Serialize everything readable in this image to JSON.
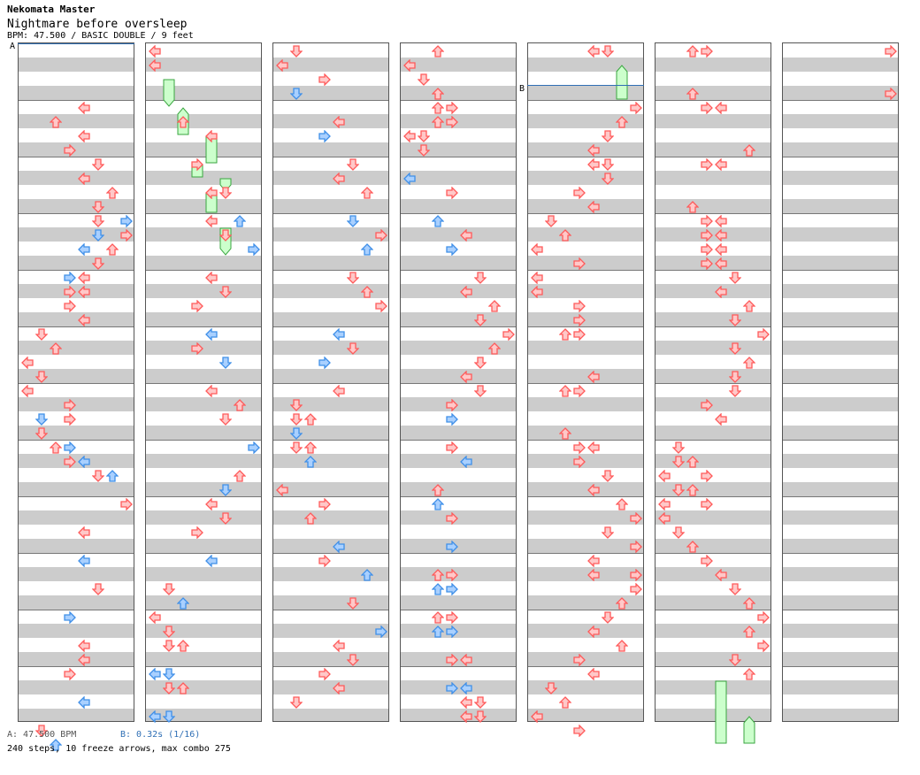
{
  "song": {
    "group": "Nekomata Master",
    "title": "Nightmare before oversleep",
    "info": "BPM: 47.500 / BASIC DOUBLE / 9 feet"
  },
  "footer": {
    "bpm": "A: 47.500 BPM",
    "stop": "B: 0.32s (1/16)",
    "stats": "240 steps, 10 freeze arrows, max combo 275"
  },
  "markers": {
    "a": "A",
    "b": "B"
  },
  "colors": {
    "red": "#ff5a5a",
    "red_fill": "#ffc8c8",
    "blue": "#3f8fe8",
    "blue_fill": "#a9d0ff",
    "green": "#3aa640",
    "green_fill": "#ccffcc"
  },
  "icons": [
    "left-arrow-icon",
    "down-arrow-icon",
    "up-arrow-icon",
    "right-arrow-icon",
    "freeze-arrow-icon"
  ],
  "chart": [
    {
      "notes": [
        [
          2.0,
          4,
          "r"
        ],
        [
          2.5,
          2,
          "r"
        ],
        [
          3.0,
          4,
          "r"
        ],
        [
          3.5,
          3,
          "r"
        ],
        [
          4.0,
          5,
          "r"
        ],
        [
          4.5,
          4,
          "r"
        ],
        [
          5.0,
          6,
          "r"
        ],
        [
          5.5,
          5,
          "r"
        ],
        [
          6.0,
          5,
          "r"
        ],
        [
          6.0,
          7,
          "b"
        ],
        [
          6.5,
          7,
          "r"
        ],
        [
          6.5,
          5,
          "b"
        ],
        [
          7.0,
          4,
          "b"
        ],
        [
          7.0,
          6,
          "r"
        ],
        [
          7.5,
          5,
          "r"
        ],
        [
          8.0,
          3,
          "b"
        ],
        [
          8.0,
          4,
          "r"
        ],
        [
          8.5,
          4,
          "r"
        ],
        [
          8.5,
          3,
          "r"
        ],
        [
          9.0,
          3,
          "r"
        ],
        [
          9.5,
          4,
          "r"
        ],
        [
          10.0,
          1,
          "r"
        ],
        [
          10.5,
          2,
          "r"
        ],
        [
          11.0,
          0,
          "r"
        ],
        [
          11.5,
          1,
          "r"
        ],
        [
          12.0,
          0,
          "r"
        ],
        [
          12.5,
          3,
          "r"
        ],
        [
          13.0,
          1,
          "b"
        ],
        [
          13.0,
          3,
          "r"
        ],
        [
          13.5,
          1,
          "r"
        ],
        [
          14.0,
          2,
          "r"
        ],
        [
          14.0,
          3,
          "b"
        ],
        [
          14.5,
          3,
          "r"
        ],
        [
          14.5,
          4,
          "b"
        ],
        [
          15.0,
          6,
          "b"
        ],
        [
          15.0,
          5,
          "r"
        ],
        [
          16.0,
          7,
          "r"
        ],
        [
          17.0,
          4,
          "r"
        ],
        [
          18.0,
          4,
          "b"
        ],
        [
          19.0,
          5,
          "r"
        ],
        [
          20.0,
          3,
          "b"
        ],
        [
          21.0,
          4,
          "r"
        ],
        [
          21.5,
          4,
          "r"
        ],
        [
          22.0,
          3,
          "r"
        ],
        [
          23.0,
          4,
          "b"
        ],
        [
          24.0,
          1,
          "r"
        ],
        [
          24.5,
          2,
          "b"
        ]
      ],
      "freezes": []
    },
    {
      "notes": [
        [
          0.0,
          0,
          "r"
        ],
        [
          0.5,
          0,
          "r"
        ],
        [
          2.5,
          2,
          "r"
        ],
        [
          3.0,
          4,
          "r"
        ],
        [
          4.0,
          3,
          "r"
        ],
        [
          5.0,
          4,
          "r"
        ],
        [
          5.0,
          5,
          "r"
        ],
        [
          6.0,
          6,
          "b"
        ],
        [
          6.0,
          4,
          "r"
        ],
        [
          6.5,
          5,
          "r"
        ],
        [
          7.0,
          7,
          "b"
        ],
        [
          8.0,
          4,
          "r"
        ],
        [
          8.5,
          5,
          "r"
        ],
        [
          9.0,
          3,
          "r"
        ],
        [
          10.0,
          4,
          "b"
        ],
        [
          10.5,
          3,
          "r"
        ],
        [
          11.0,
          5,
          "b"
        ],
        [
          12.0,
          4,
          "r"
        ],
        [
          12.5,
          6,
          "r"
        ],
        [
          13.0,
          5,
          "r"
        ],
        [
          14.0,
          7,
          "b"
        ],
        [
          15.0,
          6,
          "r"
        ],
        [
          15.5,
          5,
          "b"
        ],
        [
          16.0,
          4,
          "r"
        ],
        [
          16.5,
          5,
          "r"
        ],
        [
          17.0,
          3,
          "r"
        ],
        [
          18.0,
          4,
          "b"
        ],
        [
          19.0,
          1,
          "r"
        ],
        [
          19.5,
          2,
          "b"
        ],
        [
          20.0,
          0,
          "r"
        ],
        [
          20.5,
          1,
          "r"
        ],
        [
          21.0,
          1,
          "r"
        ],
        [
          21.0,
          2,
          "r"
        ],
        [
          22.0,
          0,
          "b"
        ],
        [
          22.0,
          1,
          "b"
        ],
        [
          22.5,
          1,
          "r"
        ],
        [
          22.5,
          2,
          "r"
        ],
        [
          23.5,
          0,
          "b"
        ],
        [
          23.5,
          1,
          "b"
        ]
      ],
      "freezes": [
        [
          1.25,
          1,
          2.25
        ],
        [
          2.25,
          2,
          3.25
        ],
        [
          3.25,
          4,
          4.25
        ],
        [
          4.25,
          3,
          4.75
        ],
        [
          4.75,
          5,
          5.25
        ],
        [
          5.25,
          4,
          6.0
        ],
        [
          6.5,
          5,
          7.5
        ]
      ]
    },
    {
      "notes": [
        [
          0.0,
          1,
          "r"
        ],
        [
          0.5,
          0,
          "r"
        ],
        [
          1.0,
          3,
          "r"
        ],
        [
          1.5,
          1,
          "b"
        ],
        [
          2.5,
          4,
          "r"
        ],
        [
          3.0,
          3,
          "b"
        ],
        [
          4.0,
          5,
          "r"
        ],
        [
          4.5,
          4,
          "r"
        ],
        [
          5.0,
          6,
          "r"
        ],
        [
          6.0,
          5,
          "b"
        ],
        [
          6.5,
          7,
          "r"
        ],
        [
          7.0,
          6,
          "b"
        ],
        [
          8.0,
          5,
          "r"
        ],
        [
          8.5,
          6,
          "r"
        ],
        [
          9.0,
          7,
          "r"
        ],
        [
          10.0,
          4,
          "b"
        ],
        [
          10.5,
          5,
          "r"
        ],
        [
          11.0,
          3,
          "b"
        ],
        [
          12.0,
          4,
          "r"
        ],
        [
          12.5,
          1,
          "r"
        ],
        [
          13.0,
          1,
          "r"
        ],
        [
          13.0,
          2,
          "r"
        ],
        [
          13.5,
          1,
          "b"
        ],
        [
          14.0,
          1,
          "r"
        ],
        [
          14.0,
          2,
          "r"
        ],
        [
          14.5,
          2,
          "b"
        ],
        [
          15.5,
          0,
          "r"
        ],
        [
          16.0,
          3,
          "r"
        ],
        [
          16.5,
          2,
          "r"
        ],
        [
          17.5,
          4,
          "b"
        ],
        [
          18.0,
          3,
          "r"
        ],
        [
          18.5,
          6,
          "b"
        ],
        [
          19.5,
          5,
          "r"
        ],
        [
          20.5,
          7,
          "b"
        ],
        [
          21.0,
          4,
          "r"
        ],
        [
          21.5,
          5,
          "r"
        ],
        [
          22.0,
          3,
          "r"
        ],
        [
          22.5,
          4,
          "r"
        ],
        [
          23.0,
          1,
          "r"
        ]
      ],
      "freezes": []
    },
    {
      "notes": [
        [
          0.0,
          2,
          "r"
        ],
        [
          0.5,
          0,
          "r"
        ],
        [
          1.0,
          1,
          "r"
        ],
        [
          1.5,
          2,
          "r"
        ],
        [
          2.0,
          2,
          "r"
        ],
        [
          2.0,
          3,
          "r"
        ],
        [
          2.5,
          2,
          "r"
        ],
        [
          2.5,
          3,
          "r"
        ],
        [
          3.0,
          0,
          "r"
        ],
        [
          3.0,
          1,
          "r"
        ],
        [
          3.5,
          1,
          "r"
        ],
        [
          4.5,
          0,
          "b"
        ],
        [
          5.0,
          3,
          "r"
        ],
        [
          6.0,
          2,
          "b"
        ],
        [
          6.5,
          4,
          "r"
        ],
        [
          7.0,
          3,
          "b"
        ],
        [
          8.0,
          5,
          "r"
        ],
        [
          8.5,
          4,
          "r"
        ],
        [
          9.0,
          6,
          "r"
        ],
        [
          9.5,
          5,
          "r"
        ],
        [
          10.0,
          7,
          "r"
        ],
        [
          10.5,
          6,
          "r"
        ],
        [
          11.0,
          5,
          "r"
        ],
        [
          11.5,
          4,
          "r"
        ],
        [
          12.0,
          5,
          "r"
        ],
        [
          12.5,
          3,
          "r"
        ],
        [
          13.0,
          3,
          "b"
        ],
        [
          14.0,
          3,
          "r"
        ],
        [
          14.5,
          4,
          "b"
        ],
        [
          15.5,
          2,
          "r"
        ],
        [
          16.0,
          2,
          "b"
        ],
        [
          16.5,
          3,
          "r"
        ],
        [
          17.5,
          3,
          "b"
        ],
        [
          18.5,
          2,
          "r"
        ],
        [
          18.5,
          3,
          "r"
        ],
        [
          19.0,
          2,
          "b"
        ],
        [
          19.0,
          3,
          "b"
        ],
        [
          20.0,
          2,
          "r"
        ],
        [
          20.0,
          3,
          "r"
        ],
        [
          20.5,
          2,
          "b"
        ],
        [
          20.5,
          3,
          "b"
        ],
        [
          21.5,
          3,
          "r"
        ],
        [
          21.5,
          4,
          "r"
        ],
        [
          22.5,
          3,
          "b"
        ],
        [
          22.5,
          4,
          "b"
        ],
        [
          23.0,
          4,
          "r"
        ],
        [
          23.0,
          5,
          "r"
        ],
        [
          23.5,
          4,
          "r"
        ],
        [
          23.5,
          5,
          "r"
        ]
      ],
      "freezes": []
    },
    {
      "notes": [
        [
          0.0,
          4,
          "r"
        ],
        [
          0.0,
          5,
          "r"
        ],
        [
          2.0,
          7,
          "r"
        ],
        [
          2.5,
          6,
          "r"
        ],
        [
          3.0,
          5,
          "r"
        ],
        [
          3.5,
          4,
          "r"
        ],
        [
          4.0,
          4,
          "r"
        ],
        [
          4.0,
          5,
          "r"
        ],
        [
          4.5,
          5,
          "r"
        ],
        [
          5.0,
          3,
          "r"
        ],
        [
          5.5,
          4,
          "r"
        ],
        [
          6.0,
          1,
          "r"
        ],
        [
          6.5,
          2,
          "r"
        ],
        [
          7.0,
          0,
          "r"
        ],
        [
          7.5,
          3,
          "r"
        ],
        [
          8.0,
          0,
          "r"
        ],
        [
          8.5,
          0,
          "r"
        ],
        [
          9.0,
          3,
          "r"
        ],
        [
          9.5,
          3,
          "r"
        ],
        [
          10.0,
          2,
          "r"
        ],
        [
          10.0,
          3,
          "r"
        ],
        [
          11.5,
          4,
          "r"
        ],
        [
          12.0,
          2,
          "r"
        ],
        [
          12.0,
          3,
          "r"
        ],
        [
          13.5,
          2,
          "r"
        ],
        [
          14.0,
          3,
          "r"
        ],
        [
          14.0,
          4,
          "r"
        ],
        [
          14.5,
          3,
          "r"
        ],
        [
          15.0,
          5,
          "r"
        ],
        [
          15.5,
          4,
          "r"
        ],
        [
          16.0,
          6,
          "r"
        ],
        [
          16.5,
          7,
          "r"
        ],
        [
          17.0,
          5,
          "r"
        ],
        [
          17.5,
          7,
          "r"
        ],
        [
          18.0,
          4,
          "r"
        ],
        [
          18.5,
          4,
          "r"
        ],
        [
          18.5,
          7,
          "r"
        ],
        [
          19.0,
          7,
          "r"
        ],
        [
          19.5,
          6,
          "r"
        ],
        [
          20.0,
          5,
          "r"
        ],
        [
          20.5,
          4,
          "r"
        ],
        [
          21.0,
          6,
          "r"
        ],
        [
          21.5,
          3,
          "r"
        ],
        [
          22.0,
          4,
          "r"
        ],
        [
          22.5,
          1,
          "r"
        ],
        [
          23.0,
          2,
          "r"
        ],
        [
          23.5,
          0,
          "r"
        ],
        [
          24.0,
          3,
          "r"
        ]
      ],
      "freezes": [
        [
          0.75,
          6,
          2.0
        ]
      ]
    },
    {
      "notes": [
        [
          0.0,
          2,
          "r"
        ],
        [
          0.0,
          3,
          "r"
        ],
        [
          1.5,
          2,
          "r"
        ],
        [
          2.0,
          3,
          "r"
        ],
        [
          2.0,
          4,
          "r"
        ],
        [
          3.5,
          6,
          "r"
        ],
        [
          4.0,
          3,
          "r"
        ],
        [
          4.0,
          4,
          "r"
        ],
        [
          5.5,
          2,
          "r"
        ],
        [
          6.0,
          3,
          "r"
        ],
        [
          6.0,
          4,
          "r"
        ],
        [
          6.5,
          3,
          "r"
        ],
        [
          6.5,
          4,
          "r"
        ],
        [
          7.0,
          3,
          "r"
        ],
        [
          7.0,
          4,
          "r"
        ],
        [
          7.5,
          3,
          "r"
        ],
        [
          7.5,
          4,
          "r"
        ],
        [
          8.0,
          5,
          "r"
        ],
        [
          8.5,
          4,
          "r"
        ],
        [
          9.0,
          6,
          "r"
        ],
        [
          9.5,
          5,
          "r"
        ],
        [
          10.0,
          7,
          "r"
        ],
        [
          10.5,
          5,
          "r"
        ],
        [
          11.0,
          6,
          "r"
        ],
        [
          11.5,
          5,
          "r"
        ],
        [
          12.0,
          5,
          "r"
        ],
        [
          12.5,
          3,
          "r"
        ],
        [
          13.0,
          4,
          "r"
        ],
        [
          14.0,
          1,
          "r"
        ],
        [
          14.5,
          1,
          "r"
        ],
        [
          14.5,
          2,
          "r"
        ],
        [
          15.0,
          0,
          "r"
        ],
        [
          15.0,
          3,
          "r"
        ],
        [
          15.5,
          1,
          "r"
        ],
        [
          15.5,
          2,
          "r"
        ],
        [
          16.0,
          0,
          "r"
        ],
        [
          16.0,
          3,
          "r"
        ],
        [
          16.5,
          0,
          "r"
        ],
        [
          17.0,
          1,
          "r"
        ],
        [
          17.5,
          2,
          "r"
        ],
        [
          18.0,
          3,
          "r"
        ],
        [
          18.5,
          4,
          "r"
        ],
        [
          19.0,
          5,
          "r"
        ],
        [
          19.5,
          6,
          "r"
        ],
        [
          20.0,
          7,
          "r"
        ],
        [
          20.5,
          6,
          "r"
        ],
        [
          21.0,
          7,
          "r"
        ],
        [
          21.5,
          5,
          "r"
        ],
        [
          22.0,
          6,
          "r"
        ]
      ],
      "freezes": [
        [
          22.5,
          4,
          24.75
        ],
        [
          23.75,
          6,
          24.75
        ]
      ]
    },
    {
      "notes": [
        [
          0.0,
          7,
          "r"
        ],
        [
          1.5,
          7,
          "r"
        ]
      ],
      "freezes": []
    }
  ]
}
